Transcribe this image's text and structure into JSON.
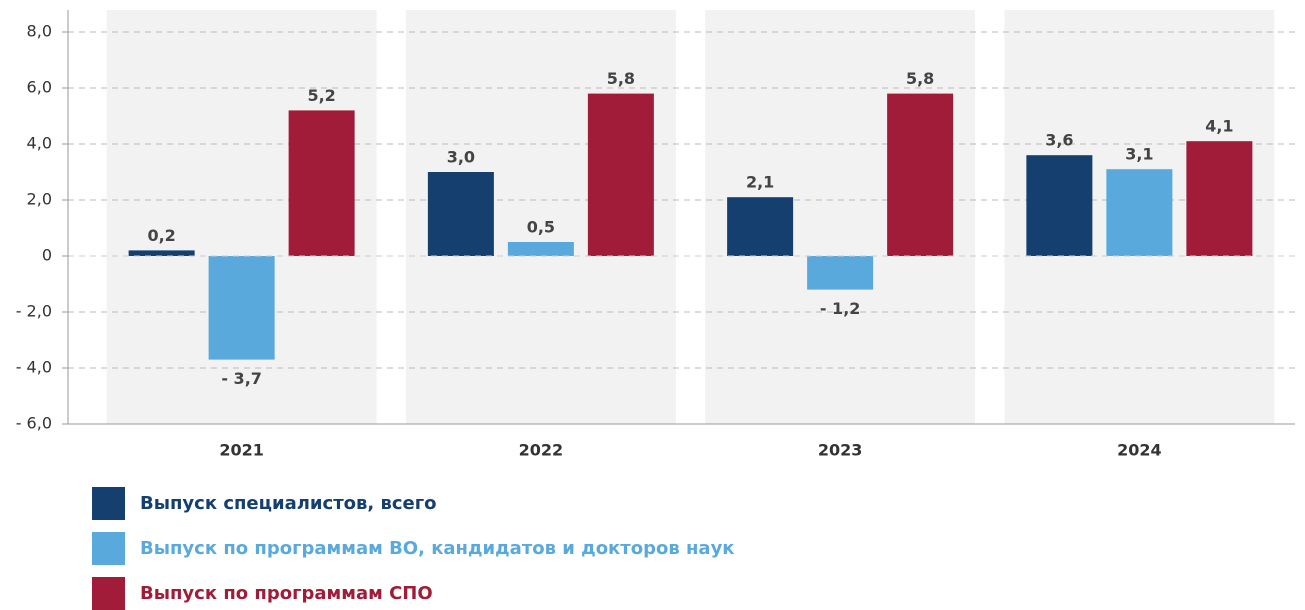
{
  "chart_data": {
    "type": "bar",
    "categories": [
      "2021",
      "2022",
      "2023",
      "2024"
    ],
    "series": [
      {
        "name": "Выпуск специалистов, всего",
        "color": "#143f6e",
        "values": [
          0.2,
          3.0,
          2.1,
          3.6
        ],
        "value_labels": [
          "0,2",
          "3,0",
          "2,1",
          "3,6"
        ]
      },
      {
        "name": "Выпуск по программам ВО, кандидатов и докторов наук",
        "color": "#5aa9dc",
        "values": [
          -3.7,
          0.5,
          -1.2,
          3.1
        ],
        "value_labels": [
          "- 3,7",
          "0,5",
          "- 1,2",
          "3,1"
        ]
      },
      {
        "name": "Выпуск по программам СПО",
        "color": "#a01c38",
        "values": [
          5.2,
          5.8,
          5.8,
          4.1
        ],
        "value_labels": [
          "5,2",
          "5,8",
          "5,8",
          "4,1"
        ]
      }
    ],
    "ylim": [
      -6,
      8
    ],
    "yticks": [
      {
        "value": -6,
        "label": "- 6,0"
      },
      {
        "value": -4,
        "label": "- 4,0"
      },
      {
        "value": -2,
        "label": "- 2,0"
      },
      0,
      {
        "value": 2,
        "label": "2,0"
      },
      {
        "value": 4,
        "label": "4,0"
      },
      {
        "value": 6,
        "label": "6,0"
      },
      {
        "value": 8,
        "label": "8,0"
      }
    ],
    "grid": true
  }
}
